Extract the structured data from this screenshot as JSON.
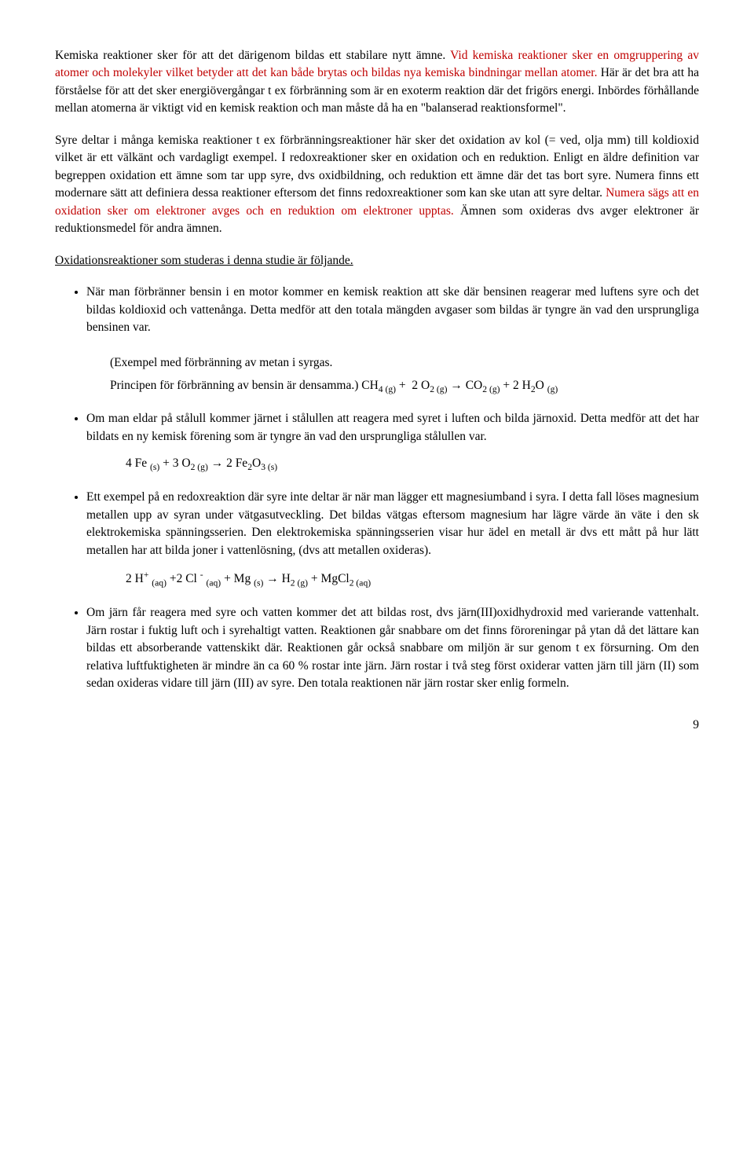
{
  "para1_part1": "Kemiska reaktioner sker för att det därigenom bildas ett stabilare nytt ämne. ",
  "para1_red": "Vid kemiska reaktioner sker en omgruppering av atomer och molekyler vilket betyder att det kan både brytas och bildas nya kemiska bindningar mellan atomer.",
  "para1_part2": " Här är det bra att ha förståelse för att det sker energiövergångar t ex förbränning som är en exoterm reaktion där det frigörs energi. Inbördes förhållande mellan atomerna är viktigt vid en kemisk reaktion och man måste då ha en \"balanserad reaktionsformel\".",
  "para2_part1": "Syre deltar i många kemiska reaktioner t ex förbränningsreaktioner här sker det oxidation av kol (= ved, olja mm) till koldioxid vilket är ett välkänt och vardagligt exempel. I redoxreaktioner sker en oxidation och en reduktion. Enligt en äldre definition var begreppen oxidation ett ämne som tar upp syre, dvs oxidbildning, och reduktion ett ämne där det tas bort syre. Numera finns ett modernare sätt att definiera dessa reaktioner eftersom det finns redoxreaktioner som kan ske utan att syre deltar. ",
  "para2_red": "Numera sägs att en oxidation sker om elektroner avges och en reduktion om elektroner upptas.",
  "para2_part2": " Ämnen som oxideras dvs avger elektroner är reduktionsmedel för andra ämnen.",
  "heading": "Oxidationsreaktioner som studeras i denna studie är följande.",
  "bullet1": "När man förbränner bensin i en motor kommer en kemisk reaktion att ske där bensinen reagerar med luftens syre och det bildas koldioxid och vattenånga. Detta medför att den totala mängden avgaser som bildas är tyngre än vad den ursprungliga bensinen var.",
  "example1_line1": "(Exempel med förbränning av metan i syrgas.",
  "example1_line2_text": "Principen för förbränning av bensin är densamma.) ",
  "bullet2": "Om man eldar på stålull kommer järnet i stålullen att reagera med syret i luften och bilda järnoxid. Detta medför att det har bildats en ny kemisk förening som är tyngre än vad den ursprungliga stålullen var.",
  "bullet3": "Ett exempel på en redoxreaktion där syre inte deltar är när man lägger ett magnesiumband i syra. I detta fall löses magnesium metallen upp av syran under vätgasutveckling. Det bildas vätgas eftersom magnesium har lägre värde än väte i den sk elektrokemiska spänningsserien. Den elektrokemiska spänningsserien visar hur ädel en metall är dvs ett mått på hur lätt metallen har att bilda joner i vattenlösning, (dvs att metallen oxideras).",
  "bullet4": "Om järn får reagera med syre och vatten kommer det att bildas rost, dvs järn(III)oxidhydroxid med varierande vattenhalt. Järn rostar i fuktig luft och i syrehaltigt vatten. Reaktionen går snabbare om det finns föroreningar på ytan då det lättare kan bildas ett absorberande vattenskikt där. Reaktionen går också snabbare om miljön är sur genom t ex försurning. Om den relativa luftfuktigheten är mindre än ca 60 % rostar inte järn. Järn rostar i två steg först oxiderar vatten järn till järn (II) som sedan oxideras vidare till järn (III) av syre. Den totala reaktionen när järn rostar sker enlig formeln.",
  "page_number": "9"
}
